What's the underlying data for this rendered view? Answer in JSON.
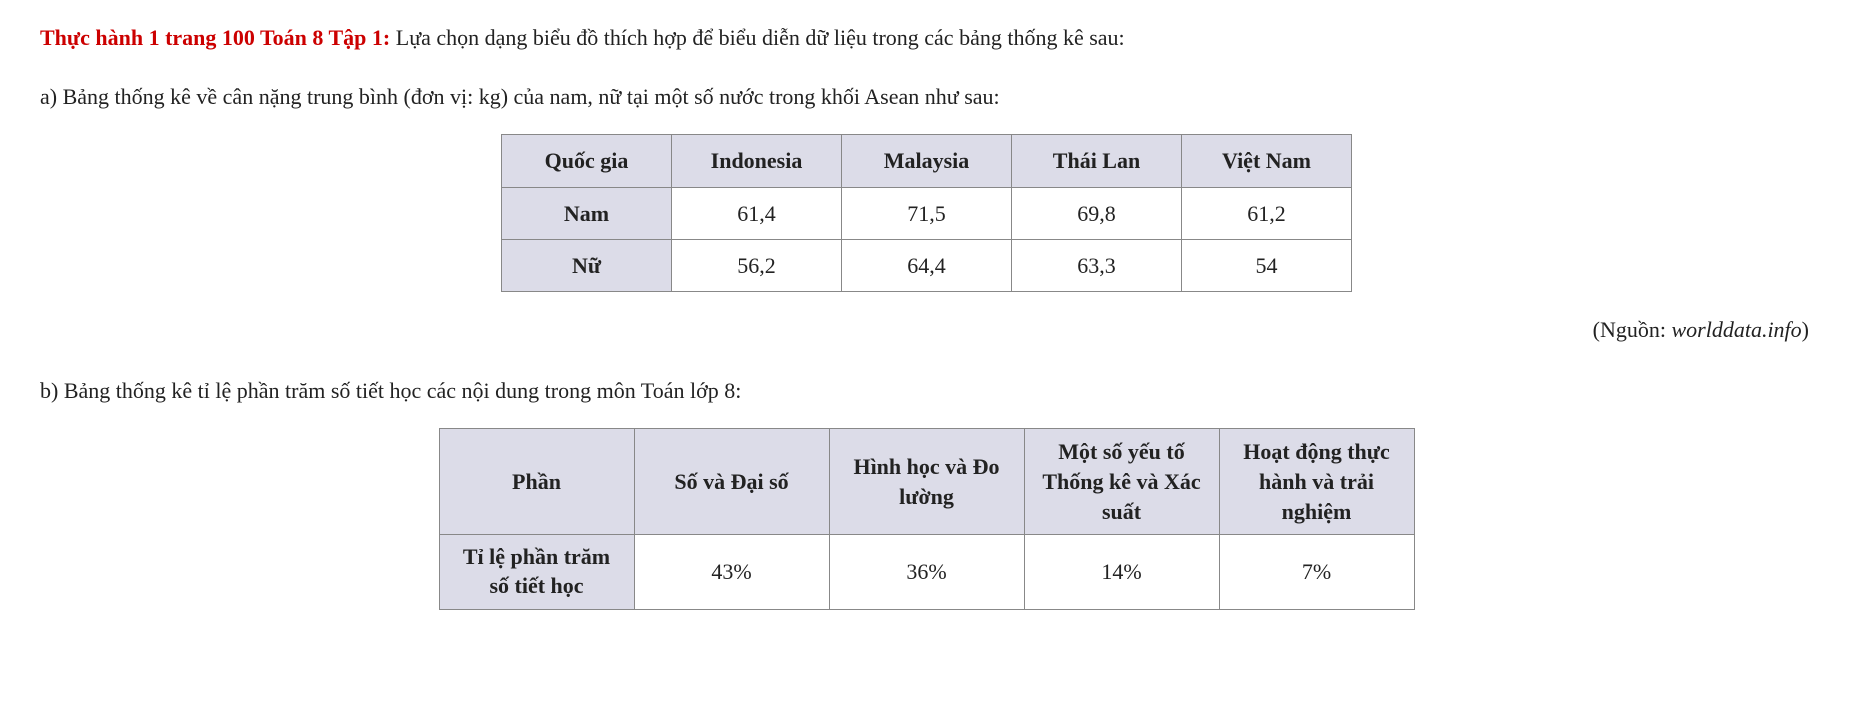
{
  "heading": {
    "title_red": "Thực hành 1 trang 100 Toán 8 Tập 1:",
    "title_rest": " Lựa chọn dạng biểu đồ thích hợp để biểu diễn dữ liệu trong các bảng thống kê sau:"
  },
  "section_a": {
    "label": "a) Bảng thống kê về cân nặng trung bình (đơn vị: kg) của nam, nữ tại một số nước trong khối Asean như sau:",
    "table": {
      "header_first": "Quốc gia",
      "columns": [
        "Indonesia",
        "Malaysia",
        "Thái Lan",
        "Việt Nam"
      ],
      "rows": [
        {
          "label": "Nam",
          "values": [
            "61,4",
            "71,5",
            "69,8",
            "61,2"
          ]
        },
        {
          "label": "Nữ",
          "values": [
            "56,2",
            "64,4",
            "63,3",
            "54"
          ]
        }
      ],
      "header_bg": "#dcdce8",
      "border_color": "#888888"
    },
    "source_prefix": "(Nguồn: ",
    "source_italic": "worlddata.info",
    "source_suffix": ")"
  },
  "section_b": {
    "label": "b) Bảng thống kê tỉ lệ phần trăm số tiết học các nội dung trong môn Toán lớp 8:",
    "table": {
      "header_first": "Phần",
      "columns": [
        "Số và Đại số",
        "Hình học và Đo lường",
        "Một số yếu tố Thống kê và Xác suất",
        "Hoạt động thực hành và trải nghiệm"
      ],
      "rows": [
        {
          "label": "Tỉ lệ phần trăm số tiết học",
          "values": [
            "43%",
            "36%",
            "14%",
            "7%"
          ]
        }
      ],
      "header_bg": "#dcdce8",
      "border_color": "#888888"
    }
  }
}
